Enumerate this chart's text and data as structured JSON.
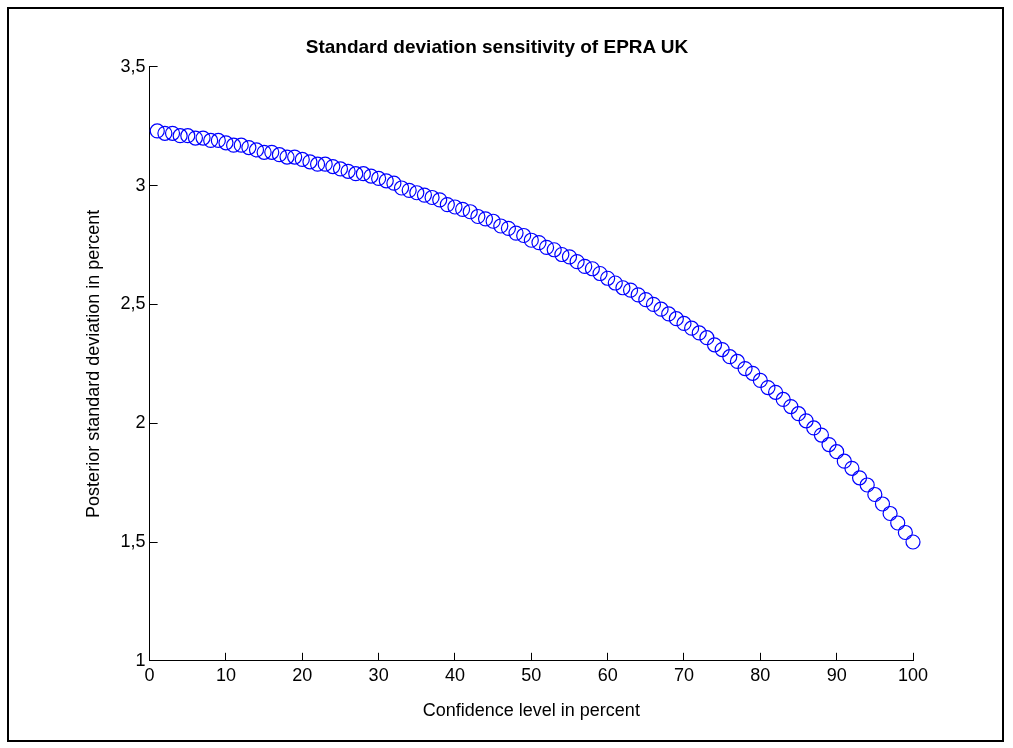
{
  "chart_data": {
    "type": "scatter",
    "title": "Standard deviation sensitivity of EPRA UK",
    "xlabel": "Confidence level in percent",
    "ylabel": "Posterior standard deviation in percent",
    "x": [
      1,
      2,
      3,
      4,
      5,
      6,
      7,
      8,
      9,
      10,
      11,
      12,
      13,
      14,
      15,
      16,
      17,
      18,
      19,
      20,
      21,
      22,
      23,
      24,
      25,
      26,
      27,
      28,
      29,
      30,
      31,
      32,
      33,
      34,
      35,
      36,
      37,
      38,
      39,
      40,
      41,
      42,
      43,
      44,
      45,
      46,
      47,
      48,
      49,
      50,
      51,
      52,
      53,
      54,
      55,
      56,
      57,
      58,
      59,
      60,
      61,
      62,
      63,
      64,
      65,
      66,
      67,
      68,
      69,
      70,
      71,
      72,
      73,
      74,
      75,
      76,
      77,
      78,
      79,
      80,
      81,
      82,
      83,
      84,
      85,
      86,
      87,
      88,
      89,
      90,
      91,
      92,
      93,
      94,
      95,
      96,
      97,
      98,
      99,
      100
    ],
    "series": [
      {
        "color": "#0000ff",
        "values": [
          3.23,
          3.22,
          3.22,
          3.21,
          3.21,
          3.2,
          3.2,
          3.19,
          3.19,
          3.18,
          3.17,
          3.17,
          3.16,
          3.15,
          3.14,
          3.14,
          3.13,
          3.12,
          3.12,
          3.11,
          3.1,
          3.09,
          3.09,
          3.08,
          3.07,
          3.06,
          3.05,
          3.05,
          3.04,
          3.03,
          3.02,
          3.01,
          2.99,
          2.98,
          2.97,
          2.96,
          2.95,
          2.94,
          2.92,
          2.91,
          2.9,
          2.89,
          2.87,
          2.86,
          2.85,
          2.83,
          2.82,
          2.8,
          2.79,
          2.77,
          2.76,
          2.74,
          2.73,
          2.71,
          2.7,
          2.68,
          2.66,
          2.65,
          2.63,
          2.61,
          2.59,
          2.57,
          2.56,
          2.54,
          2.52,
          2.5,
          2.48,
          2.46,
          2.44,
          2.42,
          2.4,
          2.38,
          2.36,
          2.33,
          2.31,
          2.28,
          2.26,
          2.23,
          2.21,
          2.18,
          2.15,
          2.13,
          2.1,
          2.07,
          2.04,
          2.01,
          1.98,
          1.95,
          1.91,
          1.88,
          1.84,
          1.81,
          1.77,
          1.74,
          1.7,
          1.66,
          1.62,
          1.58,
          1.54,
          1.5
        ]
      }
    ],
    "xlim": [
      0,
      100
    ],
    "xticks": [
      0,
      10,
      20,
      30,
      40,
      50,
      60,
      70,
      80,
      90,
      100
    ],
    "ylim": [
      1,
      3.5
    ],
    "yticks": [
      {
        "value": 1,
        "label": "1"
      },
      {
        "value": 1.5,
        "label": "1,5"
      },
      {
        "value": 2,
        "label": "2"
      },
      {
        "value": 2.5,
        "label": "2,5"
      },
      {
        "value": 3,
        "label": "3"
      },
      {
        "value": 3.5,
        "label": "3,5"
      }
    ],
    "grid": false,
    "legend": false,
    "marker": "circle"
  }
}
